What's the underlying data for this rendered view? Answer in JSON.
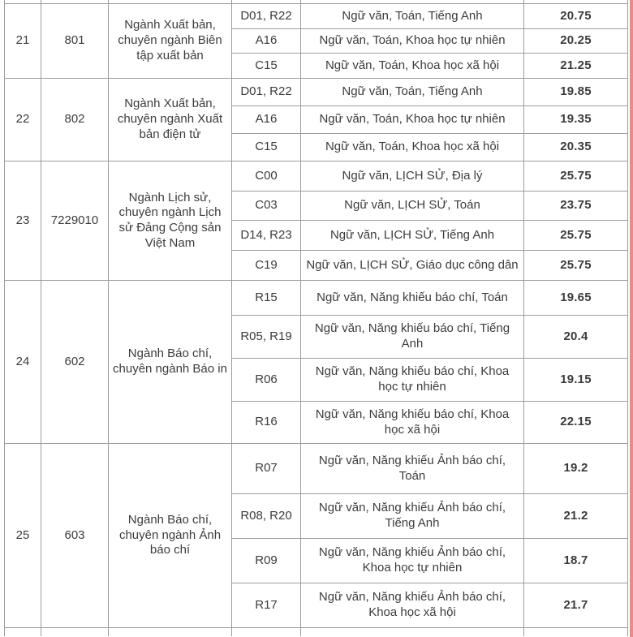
{
  "colors": {
    "background": "#ffffff",
    "border": "#9c9c9c",
    "text": "#3c3c3c",
    "score_text": "#1e1e1e",
    "edge_stripe": "#ec8b7f"
  },
  "table": {
    "blocks": [
      {
        "stt": "21",
        "code": "801",
        "major": "Ngành Xuất bản, chuyên ngành Biên tập xuất bản",
        "rows": [
          {
            "combo": "D01, R22",
            "subjects": "Ngữ văn, Toán, Tiếng Anh",
            "score": "20.75"
          },
          {
            "combo": "A16",
            "subjects": "Ngữ văn, Toán, Khoa học tự nhiên",
            "score": "20.25"
          },
          {
            "combo": "C15",
            "subjects": "Ngữ văn, Toán, Khoa học xã hội",
            "score": "21.25"
          }
        ]
      },
      {
        "stt": "22",
        "code": "802",
        "major": "Ngành Xuất bản, chuyên ngành Xuất bản điện tử",
        "rows": [
          {
            "combo": "D01, R22",
            "subjects": "Ngữ văn, Toán, Tiếng Anh",
            "score": "19.85"
          },
          {
            "combo": "A16",
            "subjects": "Ngữ văn, Toán, Khoa học tự nhiên",
            "score": "19.35"
          },
          {
            "combo": "C15",
            "subjects": "Ngữ văn, Toán, Khoa học xã hội",
            "score": "20.35"
          }
        ]
      },
      {
        "stt": "23",
        "code": "7229010",
        "major": "Ngành Lịch sử, chuyên ngành Lịch sử Đảng Cộng sản Việt Nam",
        "rows": [
          {
            "combo": "C00",
            "subjects": "Ngữ văn, LỊCH SỬ, Địa lý",
            "score": "25.75"
          },
          {
            "combo": "C03",
            "subjects": "Ngữ văn, LỊCH SỬ, Toán",
            "score": "23.75"
          },
          {
            "combo": "D14, R23",
            "subjects": "Ngữ văn, LỊCH SỬ, Tiếng Anh",
            "score": "25.75"
          },
          {
            "combo": "C19",
            "subjects": "Ngữ văn, LỊCH SỬ, Giáo dục công dân",
            "score": "25.75"
          }
        ]
      },
      {
        "stt": "24",
        "code": "602",
        "major": "Ngành Báo chí, chuyên ngành Báo in",
        "rows": [
          {
            "combo": "R15",
            "subjects": "Ngữ văn, Năng khiếu báo chí, Toán",
            "score": "19.65"
          },
          {
            "combo": "R05, R19",
            "subjects": "Ngữ văn, Năng khiếu báo chí, Tiếng Anh",
            "score": "20.4"
          },
          {
            "combo": "R06",
            "subjects": "Ngữ văn, Năng khiếu báo chí, Khoa học tự nhiên",
            "score": "19.15"
          },
          {
            "combo": "R16",
            "subjects": "Ngữ văn, Năng khiếu báo chí, Khoa học xã hội",
            "score": "22.15"
          }
        ]
      },
      {
        "stt": "25",
        "code": "603",
        "major": "Ngành Báo chí, chuyên ngành Ảnh báo chí",
        "rows": [
          {
            "combo": "R07",
            "subjects": "Ngữ văn, Năng khiếu Ảnh báo chí, Toán",
            "score": "19.2"
          },
          {
            "combo": "R08, R20",
            "subjects": "Ngữ văn, Năng khiếu Ảnh báo chí, Tiếng Anh",
            "score": "21.2"
          },
          {
            "combo": "R09",
            "subjects": "Ngữ văn, Năng khiếu Ảnh báo chí, Khoa học tự nhiên",
            "score": "18.7"
          },
          {
            "combo": "R17",
            "subjects": "Ngữ văn, Năng khiếu Ảnh báo chí, Khoa học xã hội",
            "score": "21.7"
          }
        ]
      }
    ]
  }
}
